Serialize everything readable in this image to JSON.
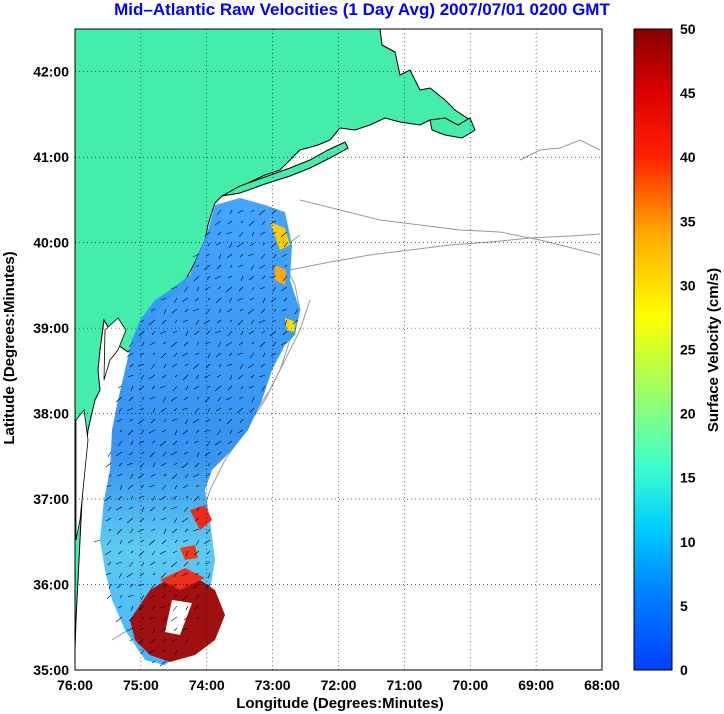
{
  "title": "Mid–Atlantic Raw Velocities (1 Day Avg) 2007/07/01 0200 GMT",
  "map": {
    "xlabel": "Longitude (Degrees:Minutes)",
    "ylabel": "Latitude (Degrees:Minutes)",
    "x_ticks": [
      "76:00",
      "75:00",
      "74:00",
      "73:00",
      "72:00",
      "71:00",
      "70:00",
      "69:00",
      "68:00"
    ],
    "y_ticks": [
      "42:00",
      "41:00",
      "40:00",
      "39:00",
      "38:00",
      "37:00",
      "36:00",
      "35:00"
    ],
    "lon_range": [
      -76,
      -68
    ],
    "lat_range": [
      35,
      42.5
    ],
    "grid": "dotted"
  },
  "colorbar": {
    "label": "Surface Velocity (cm/s)",
    "ticks": [
      "50",
      "45",
      "40",
      "35",
      "30",
      "25",
      "20",
      "15",
      "10",
      "5",
      "0"
    ],
    "range": [
      0,
      50
    ]
  },
  "colors": {
    "land": "#44eeaa",
    "coast": "#000000",
    "bathymetry": "#999999",
    "title": "#0000ff"
  }
}
